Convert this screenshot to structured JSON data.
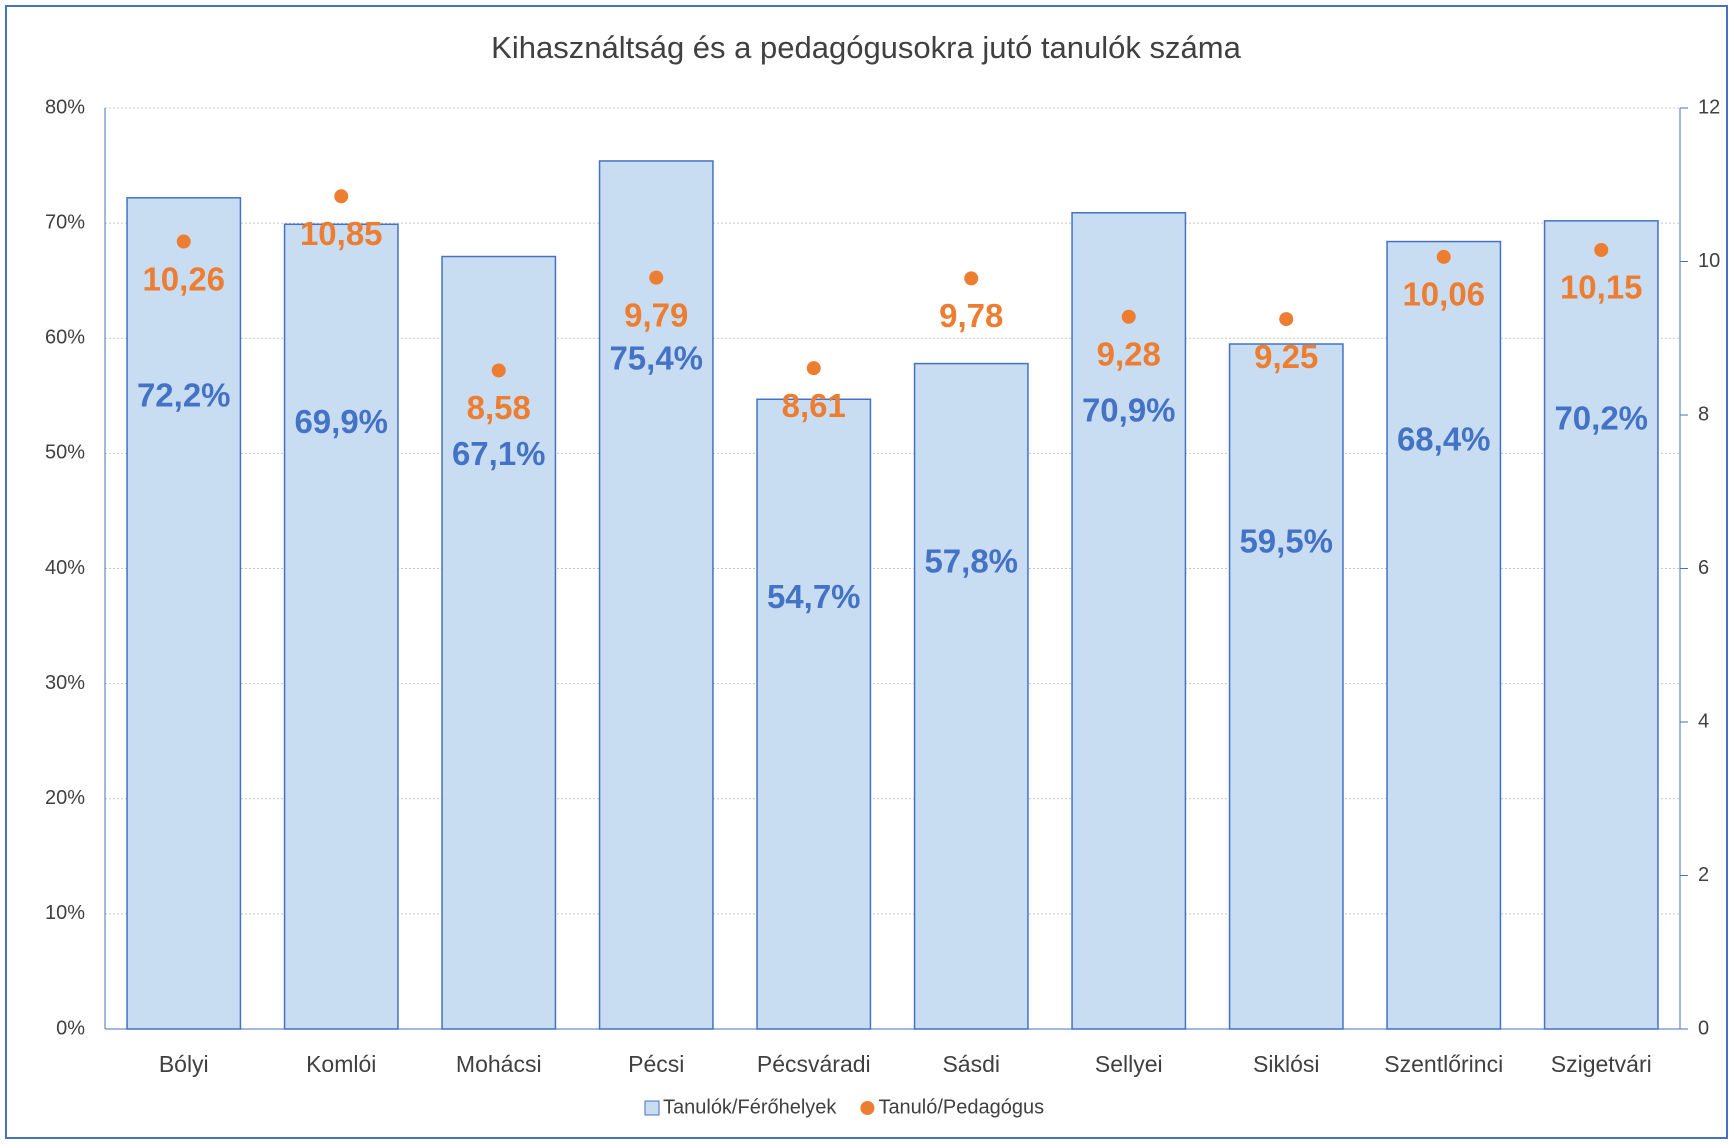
{
  "chart_data": {
    "type": "bar",
    "title": "Kihasználtság és a pedagógusokra jutó tanulók száma",
    "categories": [
      "Bólyi",
      "Komlói",
      "Mohácsi",
      "Pécsi",
      "Pécsváradi",
      "Sásdi",
      "Sellyei",
      "Siklósi",
      "Szentlőrinci",
      "Szigetvári"
    ],
    "series": [
      {
        "name": "Tanulók/Férőhelyek",
        "type": "bar",
        "color": "#c9ddf2",
        "edge": "#4472c4",
        "values": [
          72.2,
          69.9,
          67.1,
          75.4,
          54.7,
          57.8,
          70.9,
          59.5,
          68.4,
          70.2
        ],
        "value_labels": [
          "72,2%",
          "69,9%",
          "67,1%",
          "75,4%",
          "54,7%",
          "57,8%",
          "70,9%",
          "59,5%",
          "68,4%",
          "70,2%"
        ]
      },
      {
        "name": "Tanuló/Pedagógus",
        "type": "scatter",
        "axis": "y2",
        "color": "#ed7d31",
        "values": [
          10.26,
          10.85,
          8.58,
          9.79,
          8.61,
          9.78,
          9.28,
          9.25,
          10.06,
          10.15
        ],
        "value_labels": [
          "10,26",
          "10,85",
          "8,58",
          "9,79",
          "8,61",
          "9,78",
          "9,28",
          "9,25",
          "10,06",
          "10,15"
        ]
      }
    ],
    "ylim": [
      0,
      80
    ],
    "yticks": [
      {
        "value": 0,
        "label": "0%"
      },
      {
        "value": 10,
        "label": "10%"
      },
      {
        "value": 20,
        "label": "20%"
      },
      {
        "value": 30,
        "label": "30%"
      },
      {
        "value": 40,
        "label": "40%"
      },
      {
        "value": 50,
        "label": "50%"
      },
      {
        "value": 60,
        "label": "60%"
      },
      {
        "value": 70,
        "label": "70%"
      },
      {
        "value": 80,
        "label": "80%"
      }
    ],
    "y2lim": [
      0,
      12
    ],
    "y2ticks": [
      0,
      2,
      4,
      6,
      8,
      10,
      12
    ],
    "grid": true,
    "legend": "bottom"
  }
}
